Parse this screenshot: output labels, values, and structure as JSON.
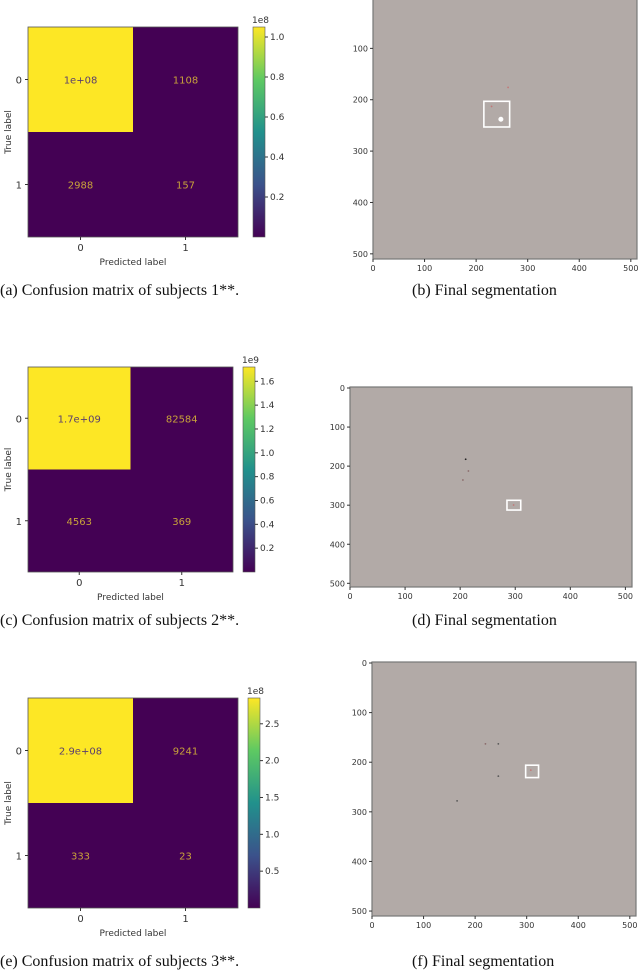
{
  "colors": {
    "viridis_low": "#440154",
    "viridis_high": "#fde725",
    "cell_text": "#c8a23a",
    "cell_text_dark": "#5a3e6e",
    "segmentation_bg": "#b2aaa7",
    "roi_box": "#ffffff"
  },
  "chart_data": [
    {
      "type": "heatmap",
      "id": "a",
      "xlabel": "Predicted label",
      "ylabel": "True label",
      "x_ticks": [
        "0",
        "1"
      ],
      "y_ticks": [
        "0",
        "1"
      ],
      "values": [
        [
          100000000,
          1108
        ],
        [
          2988,
          157
        ]
      ],
      "labels": [
        [
          "1e+08",
          "1108"
        ],
        [
          "2988",
          "157"
        ]
      ],
      "colorbar": {
        "exponent": "1e8",
        "ticks": [
          "0.2",
          "0.4",
          "0.6",
          "0.8",
          "1.0"
        ],
        "tick_values": [
          0.2,
          0.4,
          0.6,
          0.8,
          1.0
        ],
        "max": 1.05
      },
      "caption": "(a) Confusion matrix of subjects 1**."
    },
    {
      "type": "image",
      "id": "b",
      "x_ticks": [
        "0",
        "100",
        "200",
        "300",
        "400",
        "500"
      ],
      "y_ticks": [
        "100",
        "200",
        "300",
        "400",
        "500"
      ],
      "roi": [
        215,
        205,
        265,
        255
      ],
      "marks": [
        [
          248,
          240,
          "#ffffff"
        ],
        [
          230,
          215,
          "#c27878"
        ],
        [
          262,
          178,
          "#c27878"
        ]
      ],
      "caption": "(b) Final segmentation"
    },
    {
      "type": "heatmap",
      "id": "c",
      "xlabel": "Predicted label",
      "ylabel": "True label",
      "x_ticks": [
        "0",
        "1"
      ],
      "y_ticks": [
        "0",
        "1"
      ],
      "values": [
        [
          1700000000,
          82584
        ],
        [
          4563,
          369
        ]
      ],
      "labels": [
        [
          "1.7e+09",
          "82584"
        ],
        [
          "4563",
          "369"
        ]
      ],
      "colorbar": {
        "exponent": "1e9",
        "ticks": [
          "0.2",
          "0.4",
          "0.6",
          "0.8",
          "1.0",
          "1.2",
          "1.4",
          "1.6"
        ],
        "tick_values": [
          0.2,
          0.4,
          0.6,
          0.8,
          1.0,
          1.2,
          1.4,
          1.6
        ],
        "max": 1.72
      },
      "caption": "(c) Confusion matrix of subjects 2**."
    },
    {
      "type": "image",
      "id": "d",
      "x_ticks": [
        "0",
        "100",
        "200",
        "300",
        "400",
        "500"
      ],
      "y_ticks": [
        "0",
        "100",
        "200",
        "300",
        "400",
        "500"
      ],
      "roi": [
        285,
        290,
        310,
        315
      ],
      "marks": [
        [
          210,
          185,
          "#222222"
        ],
        [
          215,
          215,
          "#8a6a6a"
        ],
        [
          205,
          238,
          "#8a6a6a"
        ],
        [
          297,
          302,
          "#c27878"
        ]
      ],
      "caption": "(d) Final segmentation"
    },
    {
      "type": "heatmap",
      "id": "e",
      "xlabel": "Predicted label",
      "ylabel": "True label",
      "x_ticks": [
        "0",
        "1"
      ],
      "y_ticks": [
        "0",
        "1"
      ],
      "values": [
        [
          290000000,
          9241
        ],
        [
          333,
          23
        ]
      ],
      "labels": [
        [
          "2.9e+08",
          "9241"
        ],
        [
          "333",
          "23"
        ]
      ],
      "colorbar": {
        "exponent": "1e8",
        "ticks": [
          "0.5",
          "1.0",
          "1.5",
          "2.0",
          "2.5"
        ],
        "tick_values": [
          0.5,
          1.0,
          1.5,
          2.0,
          2.5
        ],
        "max": 2.85
      },
      "caption": "(e) Confusion matrix of subjects 3**."
    },
    {
      "type": "image",
      "id": "f",
      "x_ticks": [
        "0",
        "100",
        "200",
        "300",
        "400",
        "500"
      ],
      "y_ticks": [
        "0",
        "100",
        "200",
        "300",
        "400",
        "500"
      ],
      "roi": [
        298,
        208,
        323,
        233
      ],
      "marks": [
        [
          308,
          218,
          "#c27878"
        ],
        [
          245,
          165,
          "#555555"
        ],
        [
          220,
          165,
          "#8a6a6a"
        ],
        [
          245,
          230,
          "#555555"
        ],
        [
          165,
          280,
          "#555555"
        ]
      ],
      "caption": "(f) Final segmentation"
    }
  ]
}
